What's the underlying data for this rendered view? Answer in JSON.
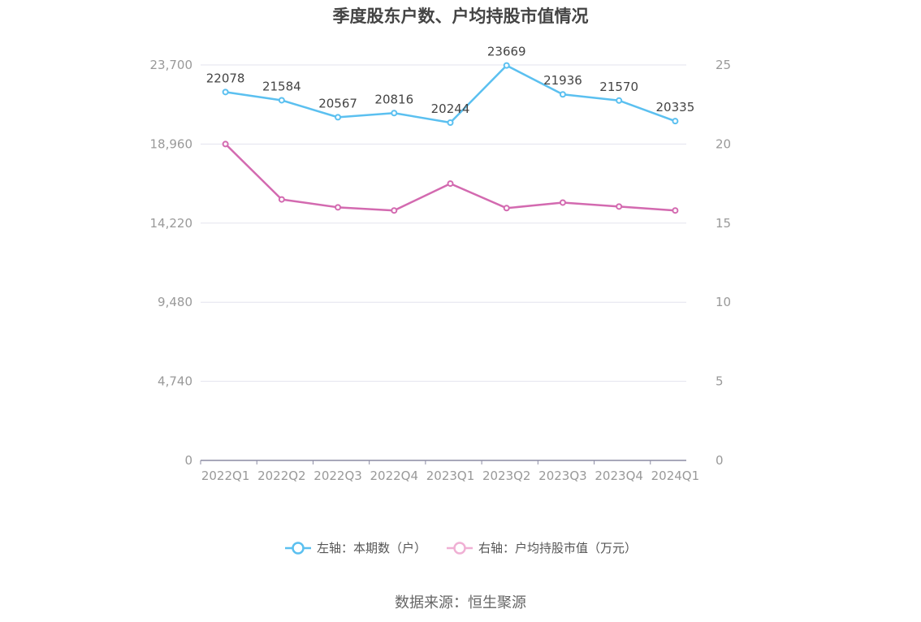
{
  "chart_data": {
    "type": "line",
    "title": "季度股东户数、户均持股市值情况",
    "categories": [
      "2022Q1",
      "2022Q2",
      "2022Q3",
      "2022Q4",
      "2023Q1",
      "2023Q2",
      "2023Q3",
      "2023Q4",
      "2024Q1"
    ],
    "series": [
      {
        "name": "左轴：本期数（户）",
        "axis": "left",
        "color": "#5bc0f0",
        "values": [
          22078,
          21584,
          20567,
          20816,
          20244,
          23669,
          21936,
          21570,
          20335
        ],
        "show_labels": true
      },
      {
        "name": "右轴：户均持股市值（万元）",
        "axis": "right",
        "color": "#d36ab0",
        "legend_color": "#f0b0d4",
        "values": [
          20.0,
          16.5,
          16.0,
          15.8,
          17.5,
          15.95,
          16.3,
          16.05,
          15.8
        ],
        "show_labels": false
      }
    ],
    "y_left": {
      "ylim": [
        0,
        23700
      ],
      "ticks": [
        "0",
        "4,740",
        "9,480",
        "14,220",
        "18,960",
        "23,700"
      ]
    },
    "y_right": {
      "ylim": [
        0,
        25
      ],
      "ticks": [
        "0",
        "5",
        "10",
        "15",
        "20",
        "25"
      ]
    },
    "grid": true,
    "legend_position": "bottom",
    "source": "数据来源：恒生聚源"
  }
}
